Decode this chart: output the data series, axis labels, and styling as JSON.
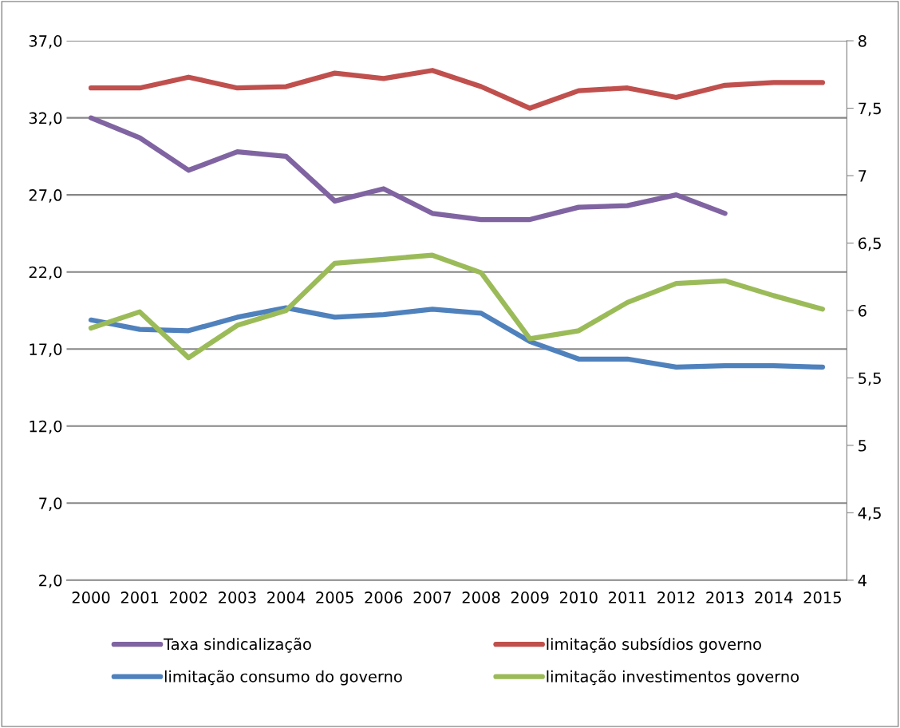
{
  "chart_data": {
    "type": "line",
    "categories": [
      "2000",
      "2001",
      "2002",
      "2003",
      "2004",
      "2005",
      "2006",
      "2007",
      "2008",
      "2009",
      "2010",
      "2011",
      "2012",
      "2013",
      "2014",
      "2015"
    ],
    "series": [
      {
        "name": "Taxa sindicalização",
        "color": "#8064a2",
        "values": [
          32.0,
          30.7,
          28.6,
          29.8,
          29.5,
          26.6,
          27.4,
          25.8,
          25.4,
          25.4,
          26.2,
          26.3,
          27.0,
          25.8,
          null,
          null
        ]
      },
      {
        "name": "limitação consumo do governo",
        "color": "#4f81bd",
        "axis": "y2",
        "values": [
          5.93,
          5.86,
          5.85,
          5.95,
          6.02,
          5.95,
          5.97,
          6.01,
          5.98,
          5.77,
          5.64,
          5.64,
          5.58,
          5.59,
          5.59,
          5.58
        ]
      },
      {
        "name": "limitação subsídios governo",
        "color": "#c0504d",
        "axis": "y2",
        "values": [
          7.65,
          7.65,
          7.73,
          7.65,
          7.66,
          7.76,
          7.72,
          7.78,
          7.66,
          7.5,
          7.63,
          7.65,
          7.58,
          7.67,
          7.69,
          7.69
        ]
      },
      {
        "name": "limitação investimentos governo",
        "color": "#9bbb59",
        "axis": "y2",
        "values": [
          5.87,
          5.99,
          5.65,
          5.89,
          6.0,
          6.35,
          6.38,
          6.41,
          6.28,
          5.79,
          5.85,
          6.06,
          6.2,
          6.22,
          6.11,
          6.01
        ]
      }
    ],
    "ylim": [
      2,
      37
    ],
    "yticks": [
      {
        "value": 2,
        "label": "2,0"
      },
      {
        "value": 7,
        "label": "7,0"
      },
      {
        "value": 12,
        "label": "12,0"
      },
      {
        "value": 17,
        "label": "17,0"
      },
      {
        "value": 22,
        "label": "22,0"
      },
      {
        "value": 27,
        "label": "27,0"
      },
      {
        "value": 32,
        "label": "32,0"
      },
      {
        "value": 37,
        "label": "37,0"
      }
    ],
    "y2lim": [
      4,
      8
    ],
    "y2ticks": [
      4,
      {
        "value": 4.5,
        "label": "4,5"
      },
      5,
      {
        "value": 5.5,
        "label": "5,5"
      },
      6,
      {
        "value": 6.5,
        "label": "6,5"
      },
      7,
      {
        "value": 7.5,
        "label": "7,5"
      },
      8
    ],
    "grid": "y",
    "legend": "bottom",
    "marker": "none",
    "line_style": "solid"
  }
}
